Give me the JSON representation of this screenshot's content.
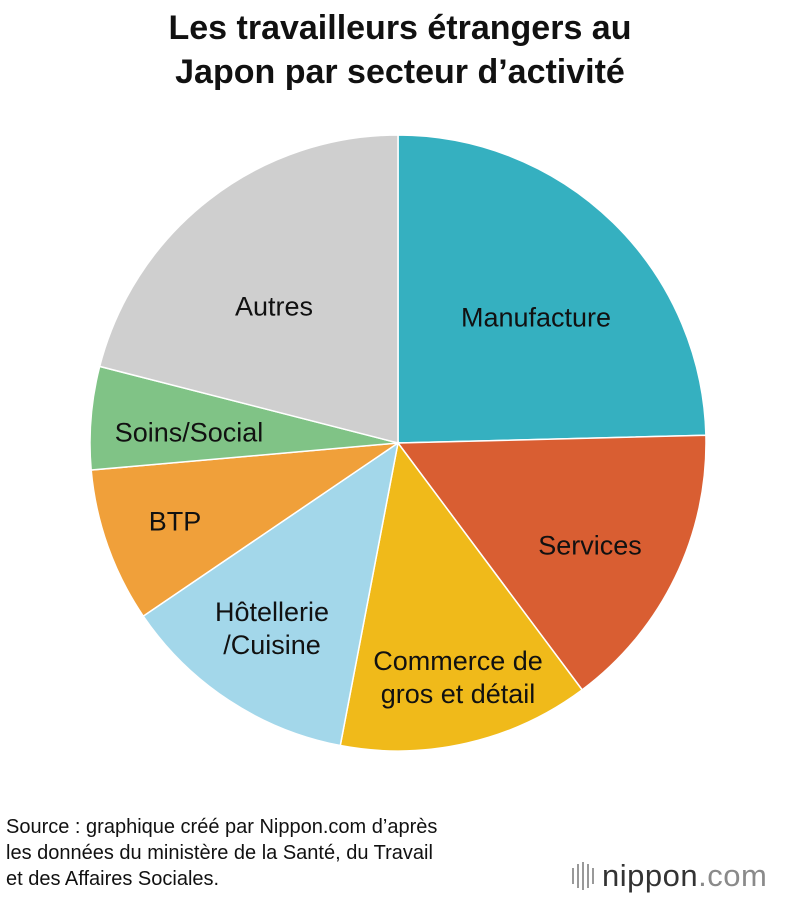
{
  "chart_data": {
    "type": "pie",
    "title": "Les travailleurs étrangers au\nJapon par secteur d’activité",
    "categories": [
      "Manufacture",
      "Services",
      "Commerce de\ngros et détail",
      "Hôtellerie\n/Cuisine",
      "BTP",
      "Soins/Social",
      "Autres"
    ],
    "values": [
      24.6,
      15.2,
      13.2,
      12.5,
      8.1,
      5.4,
      21.0
    ],
    "colors": [
      "#35b0c0",
      "#d95e32",
      "#f0ba1a",
      "#a3d7ea",
      "#f0a03a",
      "#80c386",
      "#cfcfcf"
    ],
    "source": "Source : graphique créé par Nippon.com d’après\nles données du ministère de la Santé, du Travail\net des Affaires Sociales.",
    "logo_name": "nippon",
    "logo_suffix": ".com"
  }
}
